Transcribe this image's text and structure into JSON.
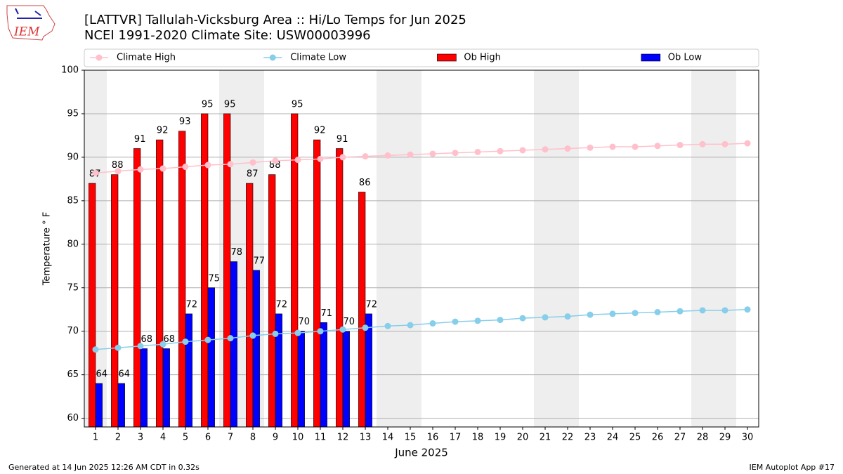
{
  "chart_data": {
    "type": "bar",
    "logo": "IEM",
    "title": "[LATTVR] Tallulah-Vicksburg Area :: Hi/Lo Temps for Jun 2025",
    "subtitle": "NCEI 1991-2020 Climate Site: USW00003996",
    "ylabel": "Temperature ° F",
    "xlabel": "June 2025",
    "footer_left": "Generated at 14 Jun 2025 12:26 AM CDT in 0.32s",
    "footer_right": "IEM Autoplot App #17",
    "x": [
      1,
      2,
      3,
      4,
      5,
      6,
      7,
      8,
      9,
      10,
      11,
      12,
      13,
      14,
      15,
      16,
      17,
      18,
      19,
      20,
      21,
      22,
      23,
      24,
      25,
      26,
      27,
      28,
      29,
      30
    ],
    "xlim": [
      0.5,
      30.5
    ],
    "xticks": [
      1,
      2,
      3,
      4,
      5,
      6,
      7,
      8,
      9,
      10,
      11,
      12,
      13,
      14,
      15,
      16,
      17,
      18,
      19,
      20,
      21,
      22,
      23,
      24,
      25,
      26,
      27,
      28,
      29,
      30
    ],
    "ylim": [
      59,
      100
    ],
    "yticks": [
      60,
      65,
      70,
      75,
      80,
      85,
      90,
      95,
      100
    ],
    "grid": true,
    "legend": "top",
    "series": [
      {
        "name": "Climate High",
        "type": "line",
        "color": "#ffc0cb",
        "values": [
          88.2,
          88.4,
          88.6,
          88.7,
          88.9,
          89.1,
          89.2,
          89.4,
          89.6,
          89.7,
          89.8,
          90.0,
          90.1,
          90.2,
          90.3,
          90.4,
          90.5,
          90.6,
          90.7,
          90.8,
          90.9,
          91.0,
          91.1,
          91.2,
          91.2,
          91.3,
          91.4,
          91.5,
          91.5,
          91.6
        ]
      },
      {
        "name": "Climate Low",
        "type": "line",
        "color": "#87ceeb",
        "values": [
          67.9,
          68.1,
          68.3,
          68.5,
          68.8,
          69.0,
          69.2,
          69.5,
          69.7,
          69.8,
          70.0,
          70.2,
          70.4,
          70.6,
          70.7,
          70.9,
          71.1,
          71.2,
          71.3,
          71.5,
          71.6,
          71.7,
          71.9,
          72.0,
          72.1,
          72.2,
          72.3,
          72.4,
          72.4,
          72.5
        ]
      },
      {
        "name": "Ob High",
        "type": "bar",
        "color": "#ff0000",
        "values": [
          87,
          88,
          91,
          92,
          93,
          95,
          95,
          87,
          88,
          95,
          92,
          91,
          86,
          null,
          null,
          null,
          null,
          null,
          null,
          null,
          null,
          null,
          null,
          null,
          null,
          null,
          null,
          null,
          null,
          null
        ]
      },
      {
        "name": "Ob Low",
        "type": "bar",
        "color": "#0000ff",
        "values": [
          64,
          64,
          68,
          68,
          72,
          75,
          78,
          77,
          72,
          70,
          71,
          70,
          72,
          null,
          null,
          null,
          null,
          null,
          null,
          null,
          null,
          null,
          null,
          null,
          null,
          null,
          null,
          null,
          null,
          null
        ]
      }
    ]
  }
}
